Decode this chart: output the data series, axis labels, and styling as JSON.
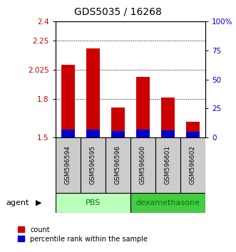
{
  "title": "GDS5035 / 16268",
  "samples": [
    "GSM596594",
    "GSM596595",
    "GSM596596",
    "GSM596600",
    "GSM596601",
    "GSM596602"
  ],
  "count_values": [
    2.065,
    2.19,
    1.73,
    1.97,
    1.81,
    1.62
  ],
  "percentile_values": [
    7.0,
    6.5,
    5.5,
    6.5,
    6.0,
    5.0
  ],
  "y_min": 1.5,
  "y_max": 2.4,
  "y_ticks": [
    1.5,
    1.8,
    2.025,
    2.25,
    2.4
  ],
  "y_tick_labels": [
    "1.5",
    "1.8",
    "2.025",
    "2.25",
    "2.4"
  ],
  "y2_ticks": [
    0,
    25,
    50,
    75,
    100
  ],
  "y2_tick_labels": [
    "0",
    "25",
    "50",
    "75",
    "100%"
  ],
  "dotted_lines": [
    2.25,
    2.025,
    1.8
  ],
  "bar_width": 0.55,
  "count_color": "#cc0000",
  "percentile_color": "#0000cc",
  "pbs_color": "#bbffbb",
  "dex_color": "#44cc44",
  "group_label_color": "#007700",
  "axis_color_left": "#cc0000",
  "axis_color_right": "#0000cc",
  "sample_box_color": "#cccccc",
  "legend_count": "count",
  "legend_percentile": "percentile rank within the sample"
}
